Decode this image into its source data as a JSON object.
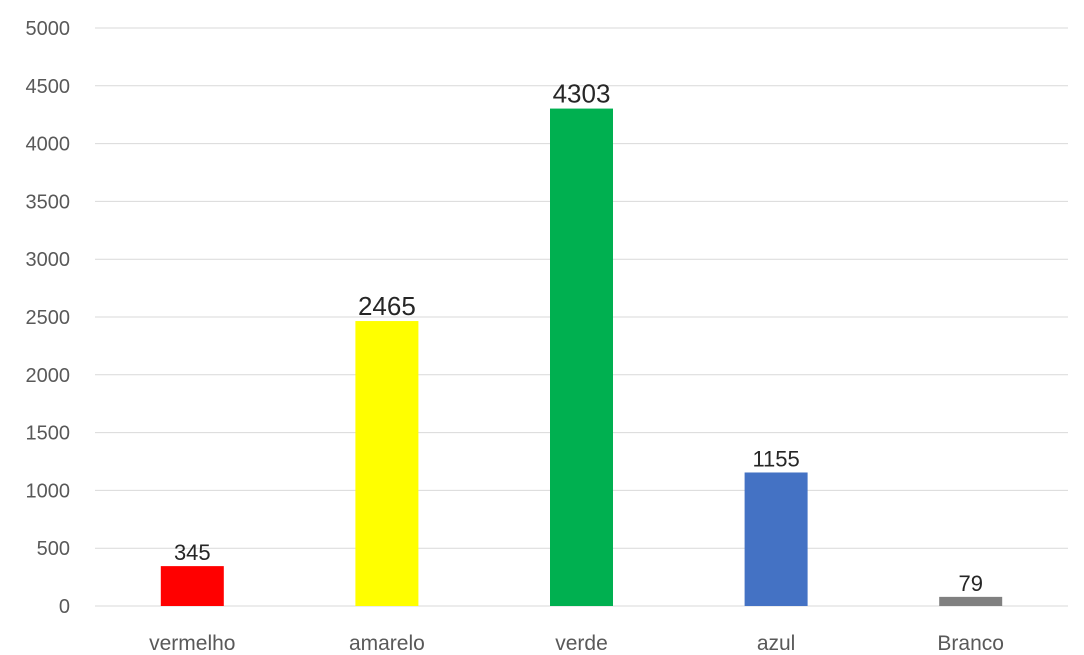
{
  "chart_data": {
    "type": "bar",
    "categories": [
      "vermelho",
      "amarelo",
      "verde",
      "azul",
      "Branco"
    ],
    "values": [
      345,
      2465,
      4303,
      1155,
      79
    ],
    "colors": [
      "#ff0000",
      "#ffff00",
      "#00b050",
      "#4472c4",
      "#808080"
    ],
    "data_labels": [
      "345",
      "2465",
      "4303",
      "1155",
      "79"
    ],
    "y_ticks": [
      "0",
      "500",
      "1000",
      "1500",
      "2000",
      "2500",
      "3000",
      "3500",
      "4000",
      "4500",
      "5000"
    ],
    "ylim": [
      0,
      5000
    ],
    "grid": true,
    "legend": "none"
  }
}
